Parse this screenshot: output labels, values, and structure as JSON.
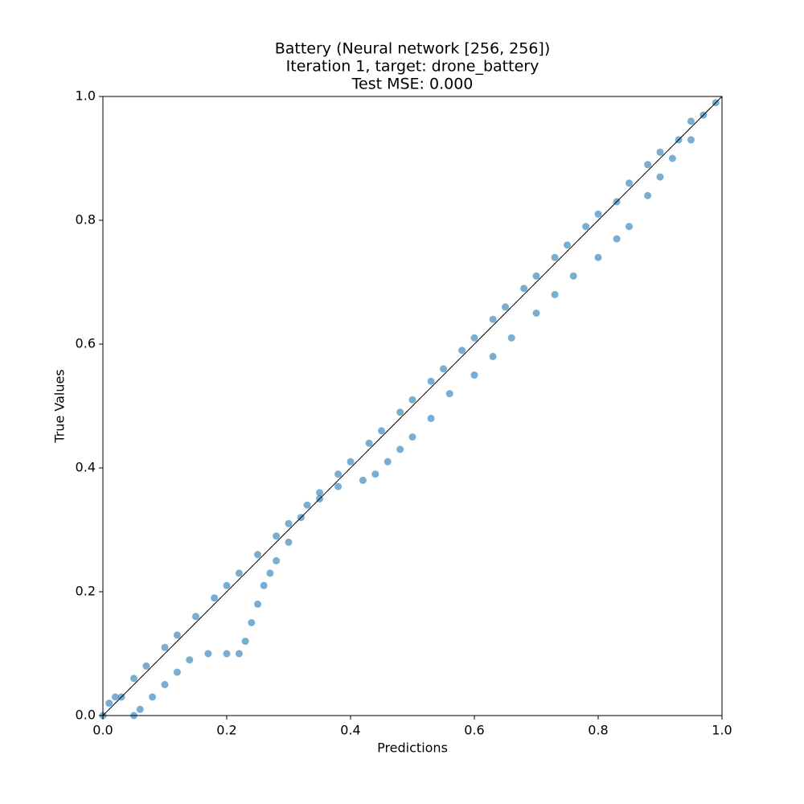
{
  "chart_data": {
    "type": "scatter",
    "title": [
      "Battery (Neural network [256, 256])",
      "Iteration 1, target: drone_battery",
      "Test MSE: 0.000"
    ],
    "x_label": "Predictions",
    "y_label": "True Values",
    "xlim": [
      0,
      1
    ],
    "ylim": [
      0,
      1
    ],
    "xticks": [
      {
        "value": 0,
        "label": "0.0"
      },
      0.2,
      0.4,
      0.6,
      0.8,
      {
        "value": 1,
        "label": "1.0"
      }
    ],
    "yticks": [
      {
        "value": 0,
        "label": "0.0"
      },
      0.2,
      0.4,
      0.6,
      0.8,
      {
        "value": 1,
        "label": "1.0"
      }
    ],
    "grid": false,
    "reference_line": {
      "x": [
        0,
        1
      ],
      "y": [
        0,
        1
      ],
      "color": "#000000"
    },
    "series": [
      {
        "color": "#1f77b4",
        "x": [
          0.0,
          0.01,
          0.02,
          0.03,
          0.05,
          0.07,
          0.1,
          0.12,
          0.15,
          0.18,
          0.2,
          0.22,
          0.25,
          0.28,
          0.3,
          0.33,
          0.35,
          0.38,
          0.4,
          0.43,
          0.45,
          0.48,
          0.5,
          0.53,
          0.55,
          0.58,
          0.6,
          0.63,
          0.65,
          0.68,
          0.7,
          0.73,
          0.75,
          0.78,
          0.8,
          0.83,
          0.85,
          0.88,
          0.9,
          0.93,
          0.95,
          0.97,
          0.99,
          0.05,
          0.06,
          0.08,
          0.1,
          0.12,
          0.14,
          0.17,
          0.2,
          0.22,
          0.23,
          0.24,
          0.25,
          0.26,
          0.27,
          0.28,
          0.3,
          0.32,
          0.35,
          0.38,
          0.42,
          0.44,
          0.46,
          0.48,
          0.5,
          0.53,
          0.56,
          0.6,
          0.63,
          0.66,
          0.7,
          0.73,
          0.76,
          0.8,
          0.83,
          0.85,
          0.88,
          0.9,
          0.92,
          0.95
        ],
        "values": [
          0.0,
          0.02,
          0.03,
          0.03,
          0.06,
          0.08,
          0.11,
          0.13,
          0.16,
          0.19,
          0.21,
          0.23,
          0.26,
          0.29,
          0.31,
          0.34,
          0.36,
          0.39,
          0.41,
          0.44,
          0.46,
          0.49,
          0.51,
          0.54,
          0.56,
          0.59,
          0.61,
          0.64,
          0.66,
          0.69,
          0.71,
          0.74,
          0.76,
          0.79,
          0.81,
          0.83,
          0.86,
          0.89,
          0.91,
          0.93,
          0.96,
          0.97,
          0.99,
          0.0,
          0.01,
          0.03,
          0.05,
          0.07,
          0.09,
          0.1,
          0.1,
          0.1,
          0.12,
          0.15,
          0.18,
          0.21,
          0.23,
          0.25,
          0.28,
          0.32,
          0.35,
          0.37,
          0.38,
          0.39,
          0.41,
          0.43,
          0.45,
          0.48,
          0.52,
          0.55,
          0.58,
          0.61,
          0.65,
          0.68,
          0.71,
          0.74,
          0.77,
          0.79,
          0.84,
          0.87,
          0.9,
          0.93
        ]
      }
    ]
  }
}
